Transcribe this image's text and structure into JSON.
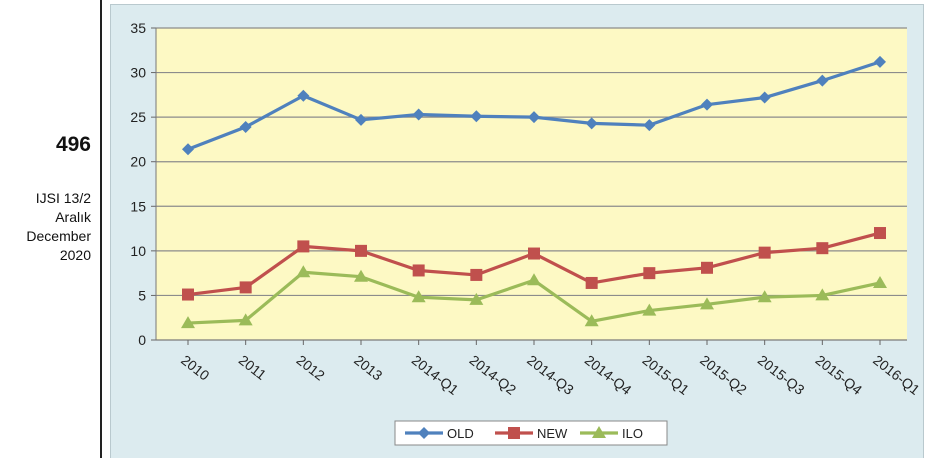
{
  "sidebar": {
    "page_number": "496",
    "journal_lines": [
      "IJSI 13/2",
      "Aralık",
      "December",
      "2020"
    ]
  },
  "chart_data": {
    "type": "line",
    "categories": [
      "2010",
      "2011",
      "2012",
      "2013",
      "2014-Q1",
      "2014-Q2",
      "2014-Q3",
      "2014-Q4",
      "2015-Q1",
      "2015-Q2",
      "2015-Q3",
      "2015-Q4",
      "2016-Q1"
    ],
    "series": [
      {
        "name": "OLD",
        "color": "#4f81bd",
        "marker": "diamond",
        "values": [
          21.4,
          23.9,
          27.4,
          24.7,
          25.3,
          25.1,
          25.0,
          24.3,
          24.1,
          26.4,
          27.2,
          29.1,
          31.2
        ]
      },
      {
        "name": "NEW",
        "color": "#c0504d",
        "marker": "square",
        "values": [
          5.1,
          5.9,
          10.5,
          10.0,
          7.8,
          7.3,
          9.7,
          6.4,
          7.5,
          8.1,
          9.8,
          10.3,
          12.0
        ]
      },
      {
        "name": "ILO",
        "color": "#9bbb59",
        "marker": "triangle",
        "values": [
          1.9,
          2.2,
          7.6,
          7.1,
          4.8,
          4.5,
          6.7,
          2.1,
          3.3,
          4.0,
          4.8,
          5.0,
          6.4
        ]
      }
    ],
    "y_ticks": [
      "0",
      "5",
      "10",
      "15",
      "20",
      "25",
      "30",
      "35"
    ],
    "ylim": [
      0,
      35
    ],
    "grid": true,
    "plot_background": "#fdf9c4",
    "frame_background": "#dcebef",
    "legend_placement": "bottom"
  }
}
